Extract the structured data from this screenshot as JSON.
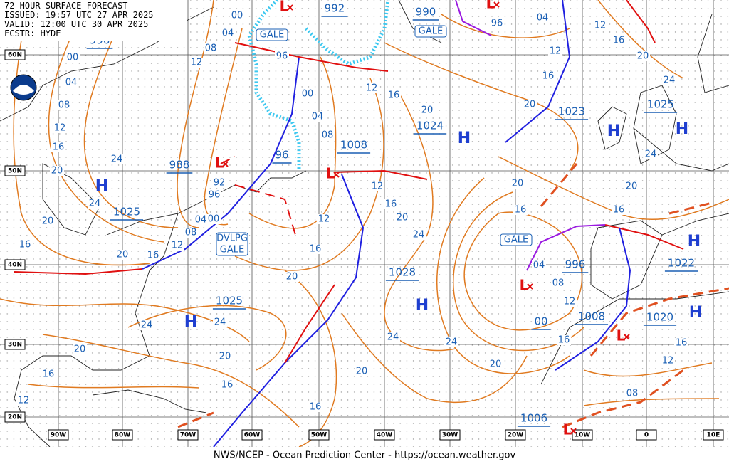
{
  "header": {
    "lines": [
      "72-HOUR SURFACE FORECAST",
      "ISSUED: 19:57 UTC 27 APR 2025",
      "VALID: 12:00 UTC 30 APR 2025",
      "FCSTR: HYDE"
    ]
  },
  "footer": "NWS/NCEP - Ocean Prediction Center - https://ocean.weather.gov",
  "latitude_labels": [
    "60N",
    "50N",
    "40N",
    "30N",
    "20N"
  ],
  "longitude_labels": [
    "90W",
    "80W",
    "70W",
    "60W",
    "50W",
    "40W",
    "30W",
    "20W",
    "10W",
    "0",
    "10E"
  ],
  "highs": [
    "H",
    "H",
    "H",
    "H",
    "H",
    "H",
    "H",
    "H"
  ],
  "lows": [
    "L",
    "L",
    "L",
    "L",
    "L",
    "L",
    "L"
  ],
  "pressure_labels": [
    "996",
    "992",
    "990",
    "1023",
    "1025",
    "1024",
    "1008",
    "988",
    "96",
    "1025",
    "1028",
    "996",
    "1022",
    "1025",
    "00",
    "1008",
    "1020",
    "1006"
  ],
  "isobar_labels": [
    "00",
    "04",
    "08",
    "00",
    "04",
    "08",
    "12",
    "16",
    "20",
    "24",
    "24",
    "20",
    "16",
    "20",
    "16",
    "12",
    "08",
    "04",
    "00",
    "96",
    "92",
    "96",
    "00",
    "04",
    "08",
    "12",
    "12",
    "16",
    "20",
    "04",
    "96",
    "12",
    "16",
    "20",
    "24",
    "12",
    "16",
    "20",
    "24",
    "20",
    "16",
    "20",
    "16",
    "12",
    "16",
    "20",
    "24",
    "12",
    "16",
    "20",
    "04",
    "08",
    "12",
    "24",
    "24",
    "20",
    "16",
    "20",
    "16",
    "12",
    "16",
    "20",
    "24",
    "24",
    "20",
    "16",
    "12",
    "16",
    "08"
  ],
  "warning_boxes": [
    [
      "GALE"
    ],
    [
      "GALE"
    ],
    [
      "GALE"
    ],
    [
      "DVLPG",
      "GALE"
    ]
  ]
}
